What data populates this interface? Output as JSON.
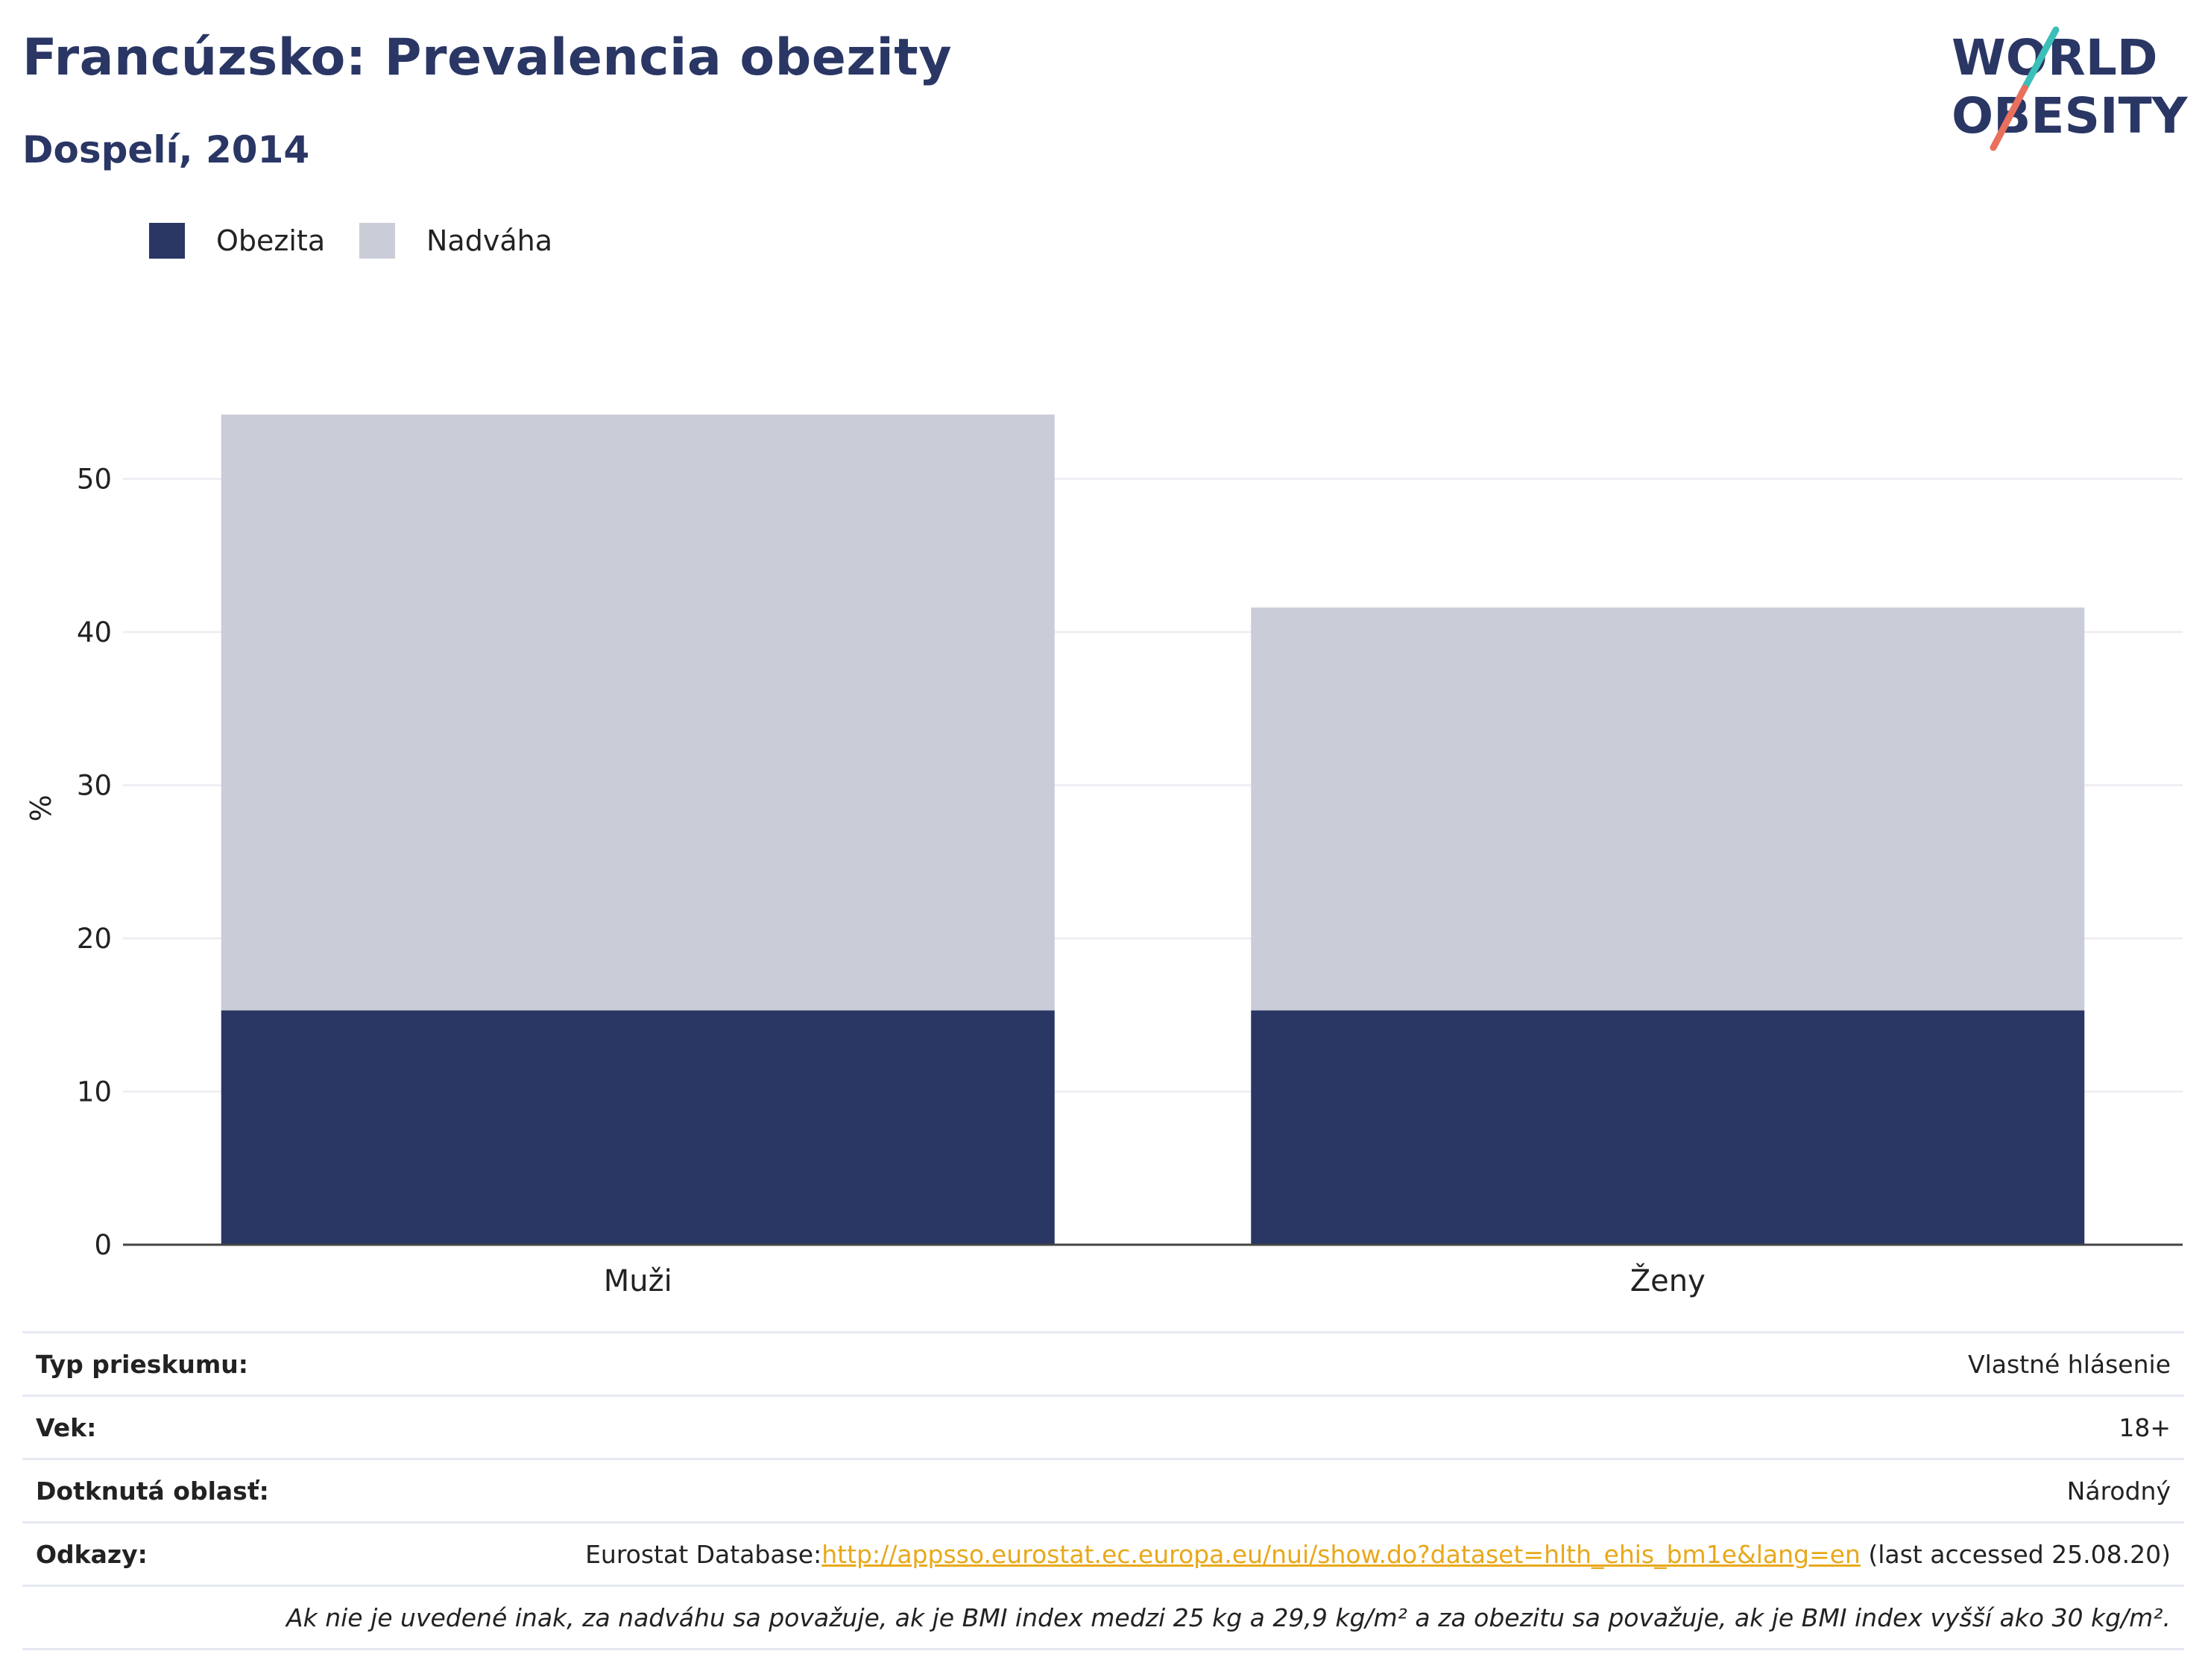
{
  "header": {
    "title": "Francúzsko: Prevalencia obezity",
    "subtitle": "Dospelí, 2014"
  },
  "logo": {
    "line1": "WORLD",
    "line2": "OBESITY"
  },
  "colors": {
    "obesity": "#2a3664",
    "overweight": "#caccd8",
    "brand": "#2a3664",
    "link": "#e9a81a",
    "logo_teal": "#3bbfb8",
    "logo_coral": "#e8705d"
  },
  "chart_data": {
    "type": "bar",
    "stacked": true,
    "categories": [
      "Muži",
      "Ženy"
    ],
    "series": [
      {
        "name": "Obezita",
        "values": [
          15.3,
          15.3
        ]
      },
      {
        "name": "Nadváha",
        "values": [
          38.9,
          26.3
        ]
      }
    ],
    "ylabel": "%",
    "xlabel": "",
    "ylim": [
      0,
      60
    ],
    "yticks": [
      0,
      10,
      20,
      30,
      40,
      50
    ],
    "grid": true,
    "legend_position": "top-left"
  },
  "info": {
    "survey_type_label": "Typ prieskumu:",
    "survey_type_value": "Vlastné hlásenie",
    "age_label": "Vek:",
    "age_value": "18+",
    "area_label": "Dotknutá oblasť:",
    "area_value": "Národný",
    "refs_label": "Odkazy:",
    "refs_prefix": "Eurostat Database:",
    "refs_link": "http://appsso.eurostat.ec.europa.eu/nui/show.do?dataset=hlth_ehis_bm1e&lang=en",
    "refs_suffix": " (last accessed 25.08.20)",
    "note": "Ak nie je uvedené inak, za nadváhu sa považuje, ak je BMI index medzi 25 kg a 29,9 kg/m² a za obezitu sa považuje, ak je BMI index vyšší ako 30 kg/m²."
  }
}
